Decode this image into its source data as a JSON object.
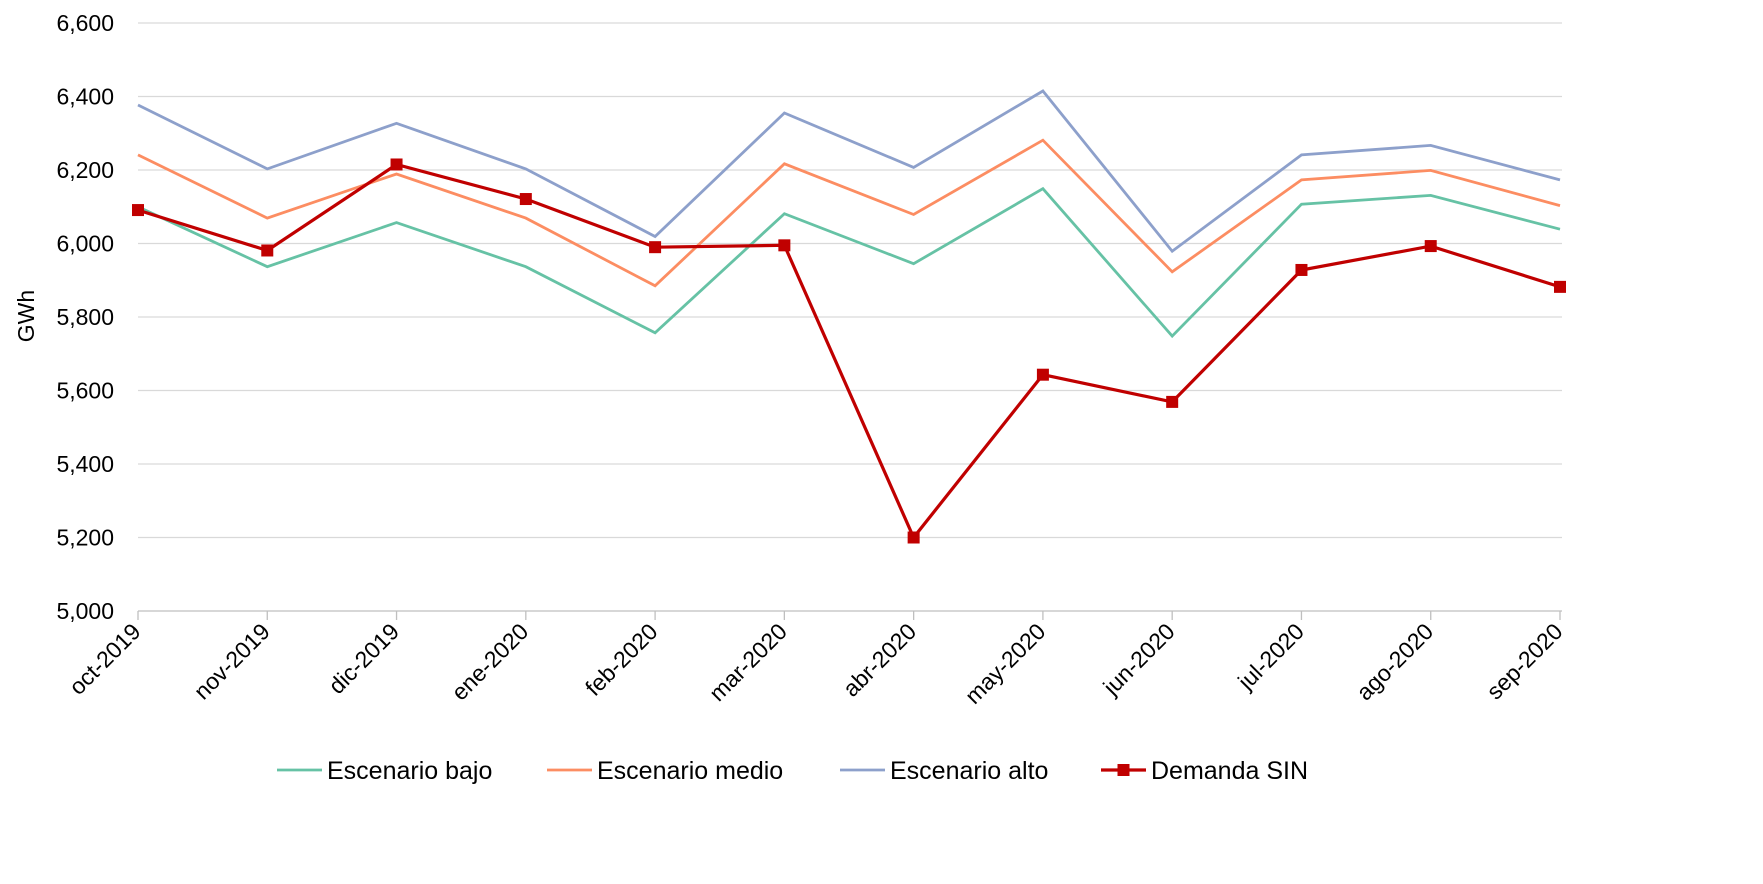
{
  "chart_data": {
    "type": "line",
    "title": "",
    "xlabel": "",
    "ylabel": "GWh",
    "ylim": [
      5000,
      6600
    ],
    "y_ticks": [
      5000,
      5200,
      5400,
      5600,
      5800,
      6000,
      6200,
      6400,
      6600
    ],
    "y_tick_labels": [
      "5,000",
      "5,200",
      "5,400",
      "5,600",
      "5,800",
      "6,000",
      "6,200",
      "6,400",
      "6,600"
    ],
    "grid": "horizontal",
    "legend_position": "bottom",
    "categories": [
      "oct-2019",
      "nov-2019",
      "dic-2019",
      "ene-2020",
      "feb-2020",
      "mar-2020",
      "abr-2020",
      "may-2020",
      "jun-2020",
      "jul-2020",
      "ago-2020",
      "sep-2020"
    ],
    "series": [
      {
        "name": "Escenario bajo",
        "color": "#66c2a5",
        "marker": "none",
        "values": [
          6100,
          5937,
          6057,
          5937,
          5757,
          6081,
          5945,
          6149,
          5748,
          6107,
          6131,
          6039
        ]
      },
      {
        "name": "Escenario medio",
        "color": "#fc8d62",
        "marker": "none",
        "values": [
          6241,
          6069,
          6189,
          6069,
          5885,
          6217,
          6079,
          6281,
          5923,
          6173,
          6199,
          6103
        ]
      },
      {
        "name": "Escenario alto",
        "color": "#8da0cb",
        "marker": "none",
        "values": [
          6377,
          6203,
          6327,
          6203,
          6019,
          6355,
          6207,
          6415,
          5979,
          6241,
          6267,
          6173
        ]
      },
      {
        "name": "Demanda SIN",
        "color": "#c00000",
        "marker": "square",
        "values": [
          6091,
          5981,
          6215,
          6121,
          5990,
          5995,
          5200,
          5643,
          5569,
          5928,
          5993,
          5882
        ]
      }
    ]
  }
}
